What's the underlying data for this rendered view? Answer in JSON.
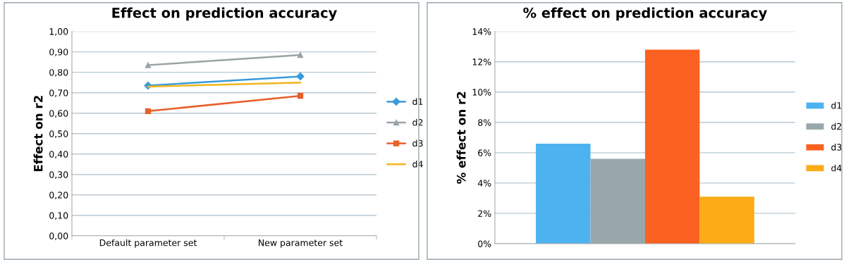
{
  "chart_data": [
    {
      "type": "line",
      "title": "Effect on prediction accuracy",
      "ylabel": "Effect on r2",
      "categories": [
        "Default parameter set",
        "New parameter set"
      ],
      "series": [
        {
          "name": "d1",
          "color": "#3a9ad9",
          "values": [
            0.735,
            0.78
          ],
          "marker": "diamond"
        },
        {
          "name": "d2",
          "color": "#9aa3a6",
          "values": [
            0.835,
            0.885
          ],
          "marker": "triangle"
        },
        {
          "name": "d3",
          "color": "#e8602c",
          "values": [
            0.61,
            0.685
          ],
          "marker": "square"
        },
        {
          "name": "d4",
          "color": "#f2b51c",
          "values": [
            0.73,
            0.75
          ],
          "marker": "none"
        }
      ],
      "ylim": [
        0,
        1
      ],
      "yticks": [
        {
          "value": 0,
          "label": "0,00"
        },
        {
          "value": 0.1,
          "label": "0,10"
        },
        {
          "value": 0.2,
          "label": "0,20"
        },
        {
          "value": 0.3,
          "label": "0,30"
        },
        {
          "value": 0.4,
          "label": "0,40"
        },
        {
          "value": 0.5,
          "label": "0,50"
        },
        {
          "value": 0.6,
          "label": "0,60"
        },
        {
          "value": 0.7,
          "label": "0,70"
        },
        {
          "value": 0.8,
          "label": "0,80"
        },
        {
          "value": 0.9,
          "label": "0,90"
        },
        {
          "value": 1,
          "label": "1,00"
        }
      ],
      "grid": "y",
      "legend": "right"
    },
    {
      "type": "bar",
      "title": "% effect on prediction accuracy",
      "ylabel": "% effect on r2",
      "categories": [
        null
      ],
      "series": [
        {
          "name": "d1",
          "color": "#4db3f0",
          "values": [
            6.6
          ]
        },
        {
          "name": "d2",
          "color": "#98a8aa",
          "values": [
            5.6
          ]
        },
        {
          "name": "d3",
          "color": "#fb6120",
          "values": [
            12.8
          ]
        },
        {
          "name": "d4",
          "color": "#fbac16",
          "values": [
            3.1
          ]
        }
      ],
      "ylim": [
        0,
        14
      ],
      "yticks": [
        {
          "value": 0,
          "label": "0%"
        },
        {
          "value": 2,
          "label": "2%"
        },
        {
          "value": 4,
          "label": "4%"
        },
        {
          "value": 6,
          "label": "6%"
        },
        {
          "value": 8,
          "label": "8%"
        },
        {
          "value": 10,
          "label": "10%"
        },
        {
          "value": 12,
          "label": "12%"
        },
        {
          "value": 14,
          "label": "14%"
        }
      ],
      "grid": "y",
      "legend": "right"
    }
  ]
}
